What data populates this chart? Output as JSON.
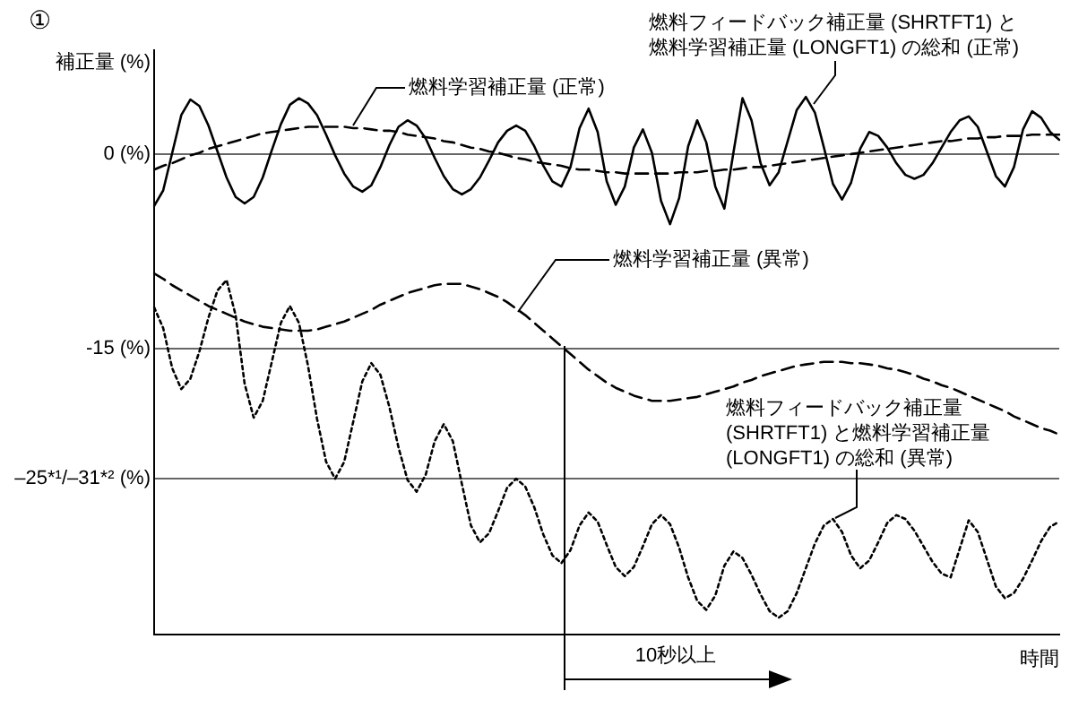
{
  "chart_data": {
    "type": "line",
    "ylabel": "補正量 (%)",
    "xlabel": "時間",
    "categories": [
      null,
      null,
      null,
      null,
      null,
      null,
      null,
      null,
      null,
      null,
      null,
      null,
      null,
      null,
      null,
      null,
      null,
      null,
      null,
      null,
      null,
      null,
      null,
      null,
      null,
      null,
      null,
      null,
      null,
      null,
      null,
      null,
      null,
      null,
      null,
      null,
      null,
      null,
      null,
      null,
      null,
      null,
      null,
      null,
      null,
      null,
      null,
      null,
      null,
      null,
      null,
      null,
      null,
      null,
      null,
      null,
      null,
      null,
      null,
      null,
      null,
      null,
      null,
      null,
      null,
      null,
      null,
      null,
      null,
      null,
      null,
      null,
      null,
      null,
      null,
      null,
      null,
      null,
      null,
      null,
      null,
      null,
      null,
      null,
      null,
      null,
      null,
      null,
      null,
      null,
      null,
      null,
      null,
      null,
      null,
      null,
      null,
      null,
      null,
      null,
      null
    ],
    "ylim": [
      -37,
      8
    ],
    "yticks": [
      {
        "value": 0,
        "label": "0 (%)"
      },
      {
        "value": -15,
        "label": "-15 (%)"
      },
      {
        "value": -25,
        "label": "–25*¹/–31*² (%)"
      }
    ],
    "tick_labels": "y",
    "grid": "y",
    "legend": false,
    "marker": "none",
    "series": [
      {
        "color": "#000000",
        "line_style": "solid",
        "values": [
          -4.0,
          -2.8,
          0.1,
          3.0,
          4.2,
          3.7,
          2.2,
          0.2,
          -1.8,
          -3.3,
          -3.8,
          -3.3,
          -1.8,
          0.3,
          2.3,
          3.8,
          4.3,
          3.9,
          3.0,
          1.5,
          -0.1,
          -1.5,
          -2.5,
          -2.9,
          -2.4,
          -1.0,
          0.7,
          2.1,
          2.6,
          2.2,
          1.2,
          -0.3,
          -1.7,
          -2.7,
          -3.1,
          -2.7,
          -1.8,
          -0.5,
          0.9,
          1.8,
          2.2,
          1.8,
          0.6,
          -0.9,
          -2.1,
          -2.5,
          -1.0,
          2.0,
          3.5,
          1.7,
          -2.1,
          -3.9,
          -2.5,
          0.5,
          1.9,
          0.1,
          -3.6,
          -5.4,
          -3.4,
          0.6,
          2.6,
          0.9,
          -2.5,
          -4.2,
          0.1,
          4.3,
          2.6,
          -0.7,
          -2.4,
          -1.4,
          1.0,
          3.4,
          4.4,
          3.2,
          0.5,
          -2.3,
          -3.5,
          -2.2,
          0.4,
          1.7,
          1.4,
          0.5,
          -0.7,
          -1.6,
          -1.9,
          -1.6,
          -0.7,
          0.5,
          1.7,
          2.6,
          2.9,
          2.1,
          0.2,
          -1.7,
          -2.5,
          -1.0,
          1.9,
          3.3,
          2.8,
          1.7,
          1.1
        ]
      },
      {
        "color": "#000000",
        "line_style": "dashed",
        "values": [
          -1.2,
          -0.9,
          -0.7,
          -0.4,
          -0.1,
          0.1,
          0.4,
          0.6,
          0.8,
          1.0,
          1.2,
          1.4,
          1.6,
          1.7,
          1.8,
          1.9,
          2.0,
          2.1,
          2.1,
          2.1,
          2.1,
          2.1,
          2.0,
          2.0,
          1.9,
          1.8,
          1.8,
          1.7,
          1.5,
          1.4,
          1.3,
          1.2,
          1.0,
          0.9,
          0.7,
          0.5,
          0.4,
          0.2,
          0.1,
          -0.1,
          -0.3,
          -0.4,
          -0.6,
          -0.7,
          -0.8,
          -0.9,
          -1.1,
          -1.2,
          -1.2,
          -1.3,
          -1.4,
          -1.4,
          -1.5,
          -1.5,
          -1.5,
          -1.5,
          -1.5,
          -1.5,
          -1.4,
          -1.4,
          -1.4,
          -1.3,
          -1.3,
          -1.2,
          -1.2,
          -1.1,
          -1.0,
          -1.0,
          -0.9,
          -0.8,
          -0.7,
          -0.6,
          -0.5,
          -0.4,
          -0.3,
          -0.2,
          -0.1,
          0.0,
          0.1,
          0.2,
          0.3,
          0.4,
          0.5,
          0.6,
          0.7,
          0.8,
          0.9,
          1.0,
          1.0,
          1.1,
          1.2,
          1.2,
          1.3,
          1.3,
          1.4,
          1.4,
          1.4,
          1.5,
          1.5,
          1.5,
          1.5
        ]
      },
      {
        "color": "#000000",
        "line_style": "dashed",
        "values": [
          -9.2,
          -9.6,
          -10.1,
          -10.5,
          -10.9,
          -11.3,
          -11.7,
          -12.0,
          -12.3,
          -12.6,
          -12.9,
          -13.1,
          -13.3,
          -13.4,
          -13.5,
          -13.6,
          -13.6,
          -13.6,
          -13.5,
          -13.3,
          -13.1,
          -12.9,
          -12.6,
          -12.3,
          -12.0,
          -11.6,
          -11.3,
          -11.0,
          -10.7,
          -10.5,
          -10.3,
          -10.1,
          -10.0,
          -10.0,
          -10.0,
          -10.2,
          -10.4,
          -10.7,
          -11.0,
          -11.4,
          -11.9,
          -12.4,
          -13.0,
          -13.6,
          -14.2,
          -14.8,
          -15.4,
          -16.0,
          -16.6,
          -17.1,
          -17.6,
          -18.0,
          -18.3,
          -18.6,
          -18.8,
          -19.0,
          -19.0,
          -19.0,
          -18.9,
          -18.8,
          -18.7,
          -18.5,
          -18.3,
          -18.1,
          -17.9,
          -17.6,
          -17.4,
          -17.1,
          -16.9,
          -16.7,
          -16.5,
          -16.3,
          -16.2,
          -16.1,
          -16.0,
          -16.0,
          -16.0,
          -16.1,
          -16.1,
          -16.2,
          -16.3,
          -16.5,
          -16.6,
          -16.8,
          -17.0,
          -17.3,
          -17.5,
          -17.8,
          -18.0,
          -18.3,
          -18.6,
          -18.9,
          -19.2,
          -19.5,
          -19.8,
          -20.2,
          -20.5,
          -20.8,
          -21.1,
          -21.3,
          -21.6
        ]
      },
      {
        "color": "#000000",
        "line_style": "dotted",
        "values": [
          -11.8,
          -13.4,
          -16.5,
          -18.1,
          -17.3,
          -15.2,
          -12.6,
          -10.5,
          -9.7,
          -12.4,
          -17.7,
          -20.3,
          -19.0,
          -16.0,
          -13.0,
          -11.7,
          -13.0,
          -16.3,
          -20.4,
          -23.7,
          -25.0,
          -23.7,
          -20.6,
          -17.5,
          -16.1,
          -17.0,
          -19.5,
          -22.6,
          -25.1,
          -26.0,
          -24.7,
          -22.1,
          -20.8,
          -22.1,
          -25.4,
          -28.6,
          -29.9,
          -29.2,
          -27.5,
          -25.7,
          -25.0,
          -25.6,
          -27.2,
          -29.3,
          -30.9,
          -31.5,
          -30.5,
          -28.6,
          -27.6,
          -28.3,
          -30.1,
          -31.8,
          -32.5,
          -31.8,
          -30.2,
          -28.5,
          -27.8,
          -28.5,
          -30.3,
          -32.6,
          -34.4,
          -35.1,
          -34.0,
          -31.7,
          -30.6,
          -31.1,
          -32.4,
          -33.9,
          -35.2,
          -35.7,
          -35.2,
          -33.8,
          -31.9,
          -30.0,
          -28.6,
          -28.1,
          -29.1,
          -30.9,
          -31.9,
          -31.3,
          -29.9,
          -28.4,
          -27.8,
          -28.1,
          -29.0,
          -30.2,
          -31.4,
          -32.3,
          -32.6,
          -30.4,
          -28.2,
          -29.1,
          -31.2,
          -33.3,
          -34.2,
          -33.8,
          -32.7,
          -31.3,
          -29.8,
          -28.7,
          -28.3
        ]
      }
    ],
    "annotations": [
      "①",
      "燃料学習補正量 (正常)",
      "燃料フィードバック補正量 (SHRTFT1) と燃料学習補正量 (LONGFT1) の総和 (正常)",
      "燃料学習補正量 (異常)",
      "燃料フィードバック補正量 (SHRTFT1) と燃料学習補正量 (LONGFT1) の総和 (異常)",
      "10秒以上"
    ]
  }
}
